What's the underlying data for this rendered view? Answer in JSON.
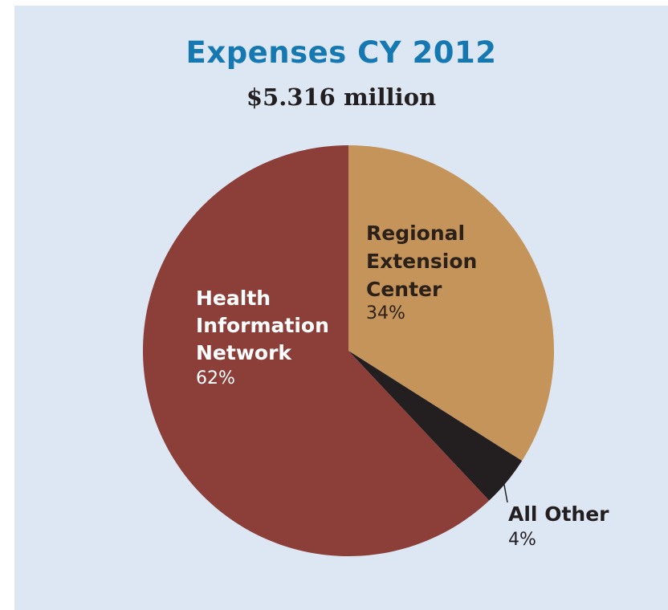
{
  "chart_data": {
    "type": "pie",
    "title": "Expenses CY 2012",
    "subtitle": "$5.316 million",
    "slices": [
      {
        "name_lines": [
          "Regional",
          "Extension",
          "Center"
        ],
        "percent_label": "34%",
        "value": 34,
        "color": "#c5945a",
        "text_color": "#2b2119"
      },
      {
        "name_lines": [
          "All Other"
        ],
        "percent_label": "4%",
        "value": 4,
        "color": "#231f20",
        "text_color": "#231f20"
      },
      {
        "name_lines": [
          "Health",
          "Information",
          "Network"
        ],
        "percent_label": "62%",
        "value": 62,
        "color": "#8c3e39",
        "text_color": "#ffffff"
      }
    ],
    "start_angle": "12 o'clock",
    "direction": "clockwise",
    "legend": "none (direct labels)"
  },
  "colors": {
    "panel_background": "#dce7f3",
    "title": "#1578b0"
  }
}
